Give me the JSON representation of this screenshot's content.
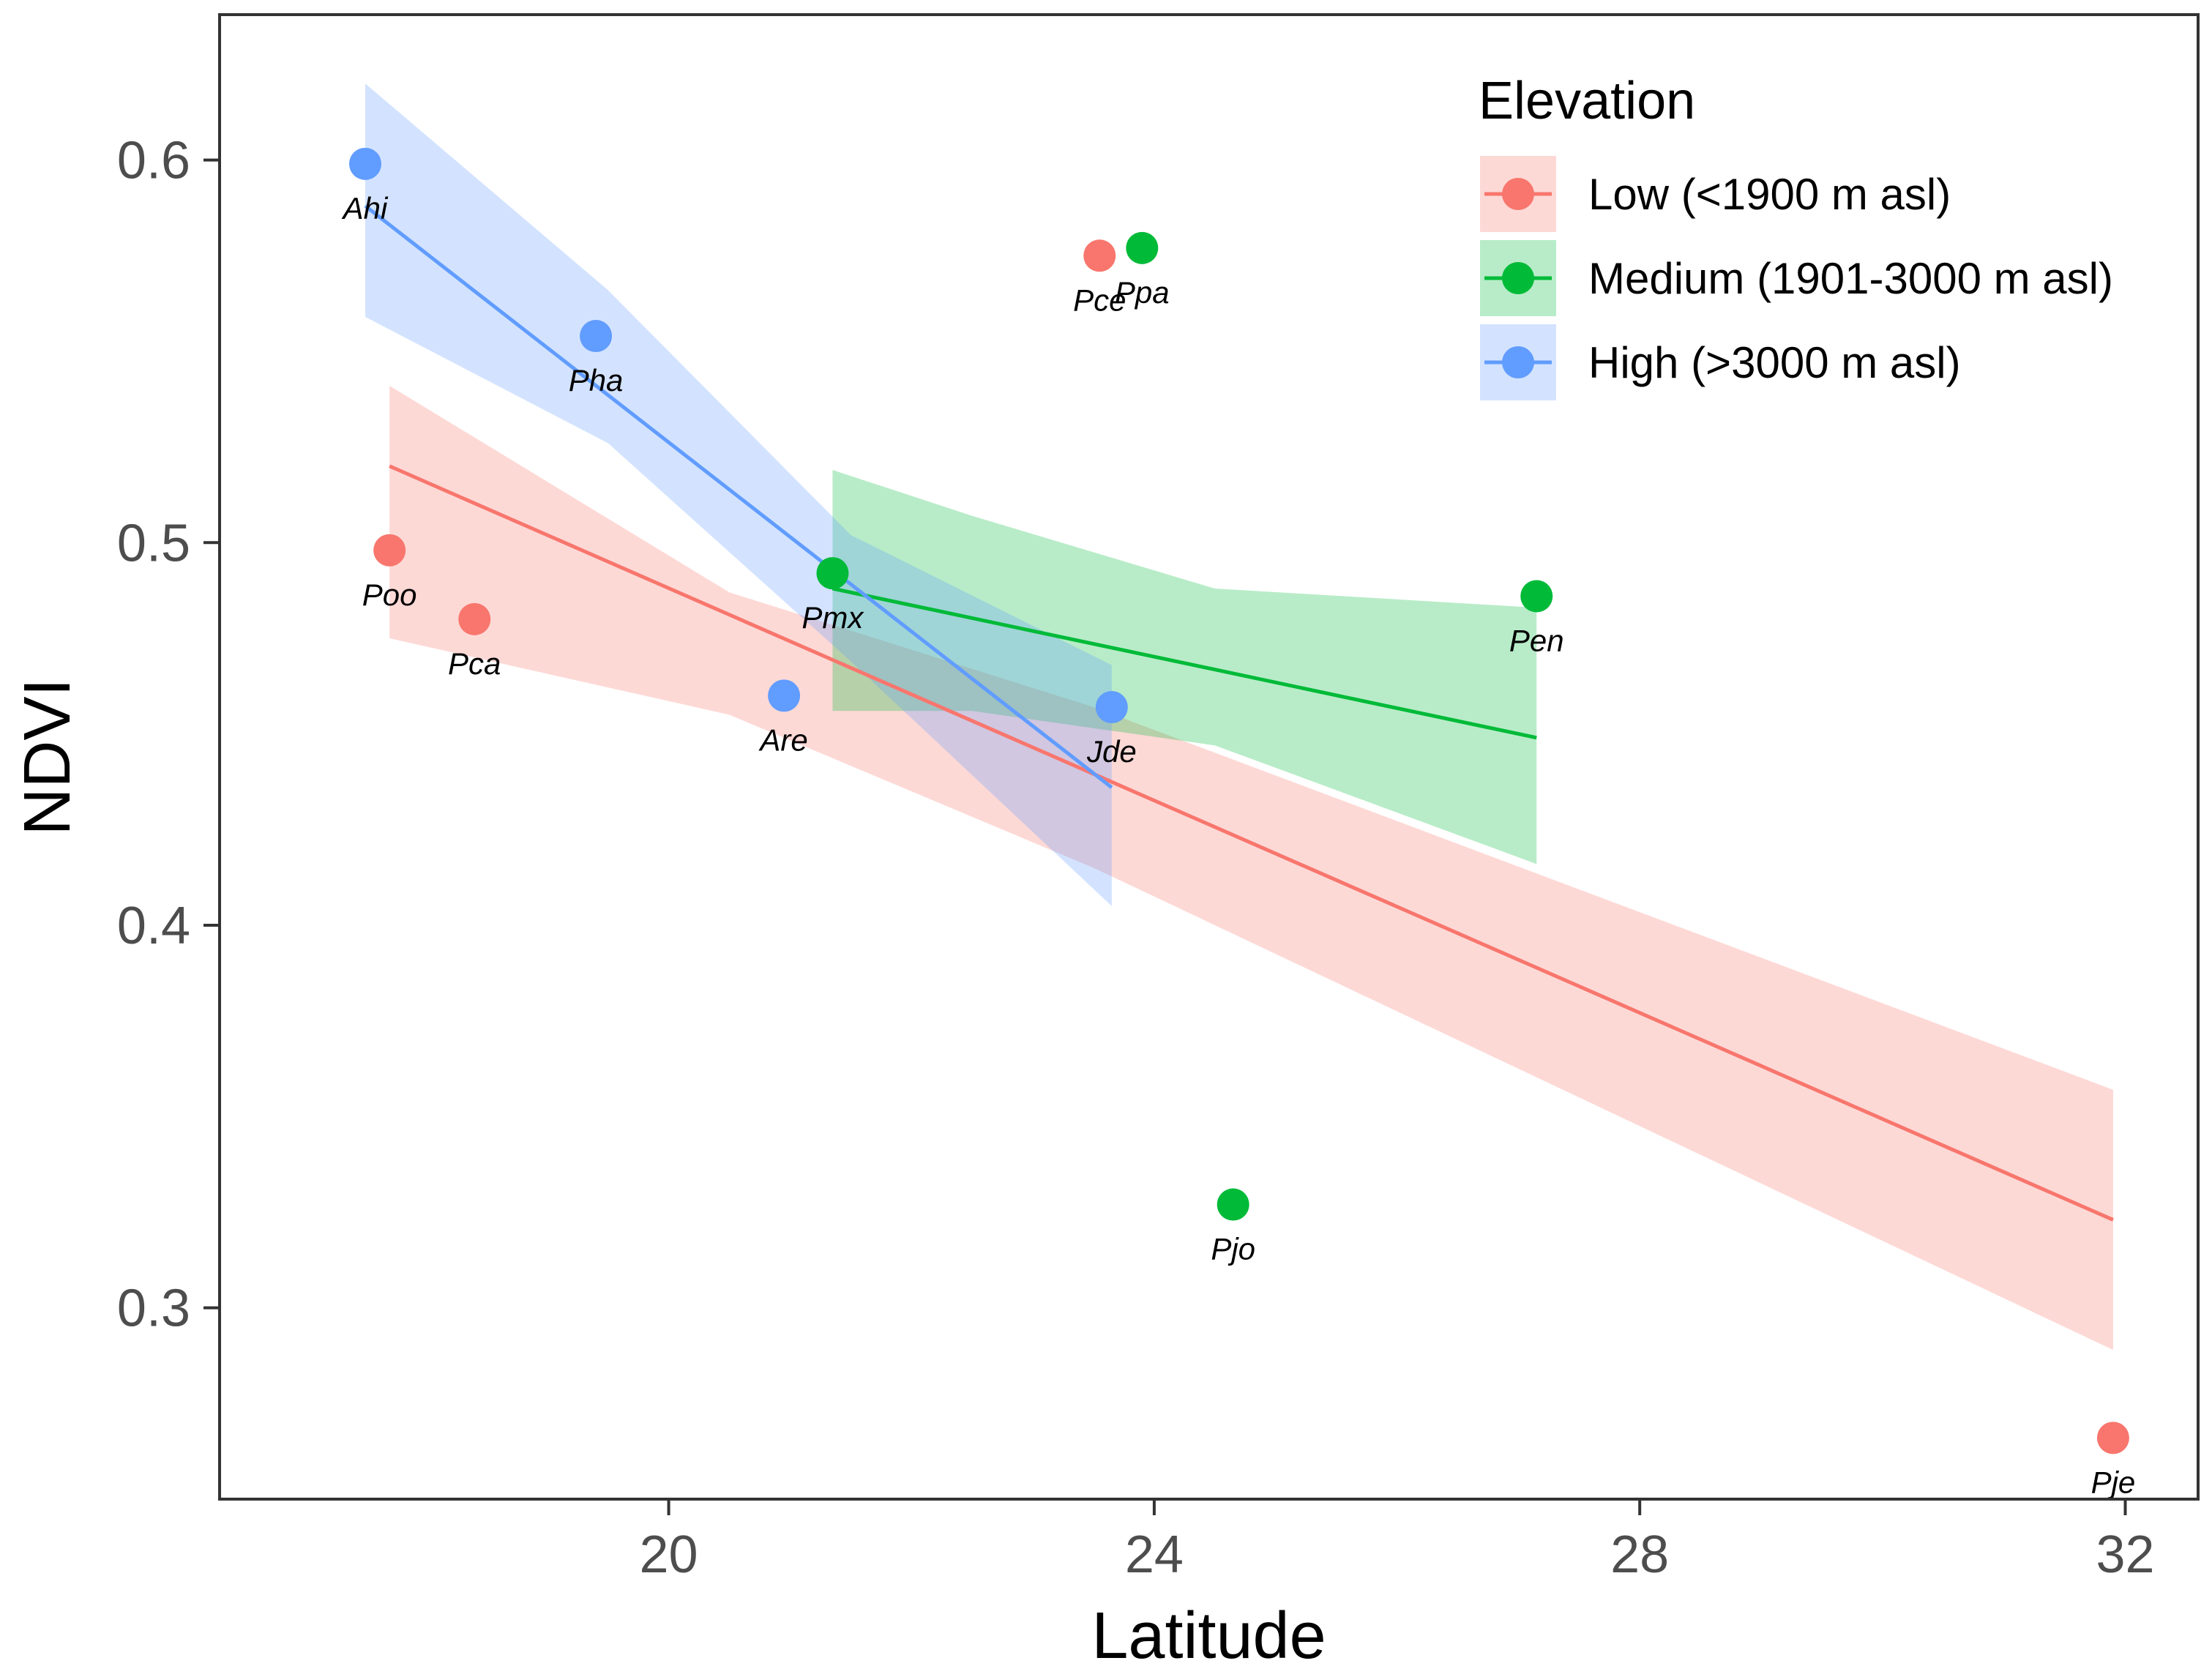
{
  "chart_data": {
    "type": "scatter",
    "xlabel": "Latitude",
    "ylabel": "NDVI",
    "xlim": [
      16.3,
      32.6
    ],
    "ylim": [
      0.25,
      0.638
    ],
    "x_ticks": [
      20,
      24,
      28,
      32
    ],
    "x_tick_labels": [
      "20",
      "24",
      "28",
      "32"
    ],
    "y_ticks": [
      0.3,
      0.4,
      0.5,
      0.6
    ],
    "y_tick_labels": [
      "0.3",
      "0.4",
      "0.5",
      "0.6"
    ],
    "grid": false,
    "legend": {
      "title": "Elevation",
      "position": "top-right"
    },
    "series": [
      {
        "name": "Low (<1900 m asl)",
        "color": "#F8766D",
        "points": [
          {
            "label": "Poo",
            "x": 17.7,
            "y": 0.498
          },
          {
            "label": "Pca",
            "x": 18.4,
            "y": 0.48
          },
          {
            "label": "Pce",
            "x": 23.55,
            "y": 0.575
          },
          {
            "label": "Pje",
            "x": 31.9,
            "y": 0.266
          }
        ],
        "fit": {
          "x": [
            17.7,
            31.9
          ],
          "y": [
            0.52,
            0.323
          ]
        },
        "ci": {
          "x": [
            17.7,
            20.5,
            23.5,
            31.9
          ],
          "lower": [
            0.475,
            0.455,
            0.415,
            0.289
          ],
          "upper": [
            0.541,
            0.487,
            0.457,
            0.357
          ]
        }
      },
      {
        "name": "Medium (1901-3000 m asl)",
        "color": "#00BA38",
        "points": [
          {
            "label": "Ppa",
            "x": 23.9,
            "y": 0.577
          },
          {
            "label": "Pmx",
            "x": 21.35,
            "y": 0.492
          },
          {
            "label": "Pen",
            "x": 27.15,
            "y": 0.486
          },
          {
            "label": "Pjo",
            "x": 24.65,
            "y": 0.327
          }
        ],
        "fit": {
          "x": [
            21.35,
            27.15
          ],
          "y": [
            0.488,
            0.449
          ]
        },
        "ci": {
          "x": [
            21.35,
            22.5,
            24.5,
            27.15
          ],
          "lower": [
            0.456,
            0.456,
            0.447,
            0.416
          ],
          "upper": [
            0.519,
            0.507,
            0.488,
            0.483
          ]
        }
      },
      {
        "name": "High (>3000 m asl)",
        "color": "#619CFF",
        "points": [
          {
            "label": "Ahi",
            "x": 17.5,
            "y": 0.599
          },
          {
            "label": "Pha",
            "x": 19.4,
            "y": 0.554
          },
          {
            "label": "Are",
            "x": 20.95,
            "y": 0.46
          },
          {
            "label": "Jde",
            "x": 23.65,
            "y": 0.457
          }
        ],
        "fit": {
          "x": [
            17.5,
            23.65
          ],
          "y": [
            0.588,
            0.436
          ]
        },
        "ci": {
          "x": [
            17.5,
            19.5,
            21.5,
            23.65
          ],
          "lower": [
            0.559,
            0.526,
            0.469,
            0.405
          ],
          "upper": [
            0.62,
            0.566,
            0.502,
            0.468
          ]
        }
      }
    ]
  }
}
